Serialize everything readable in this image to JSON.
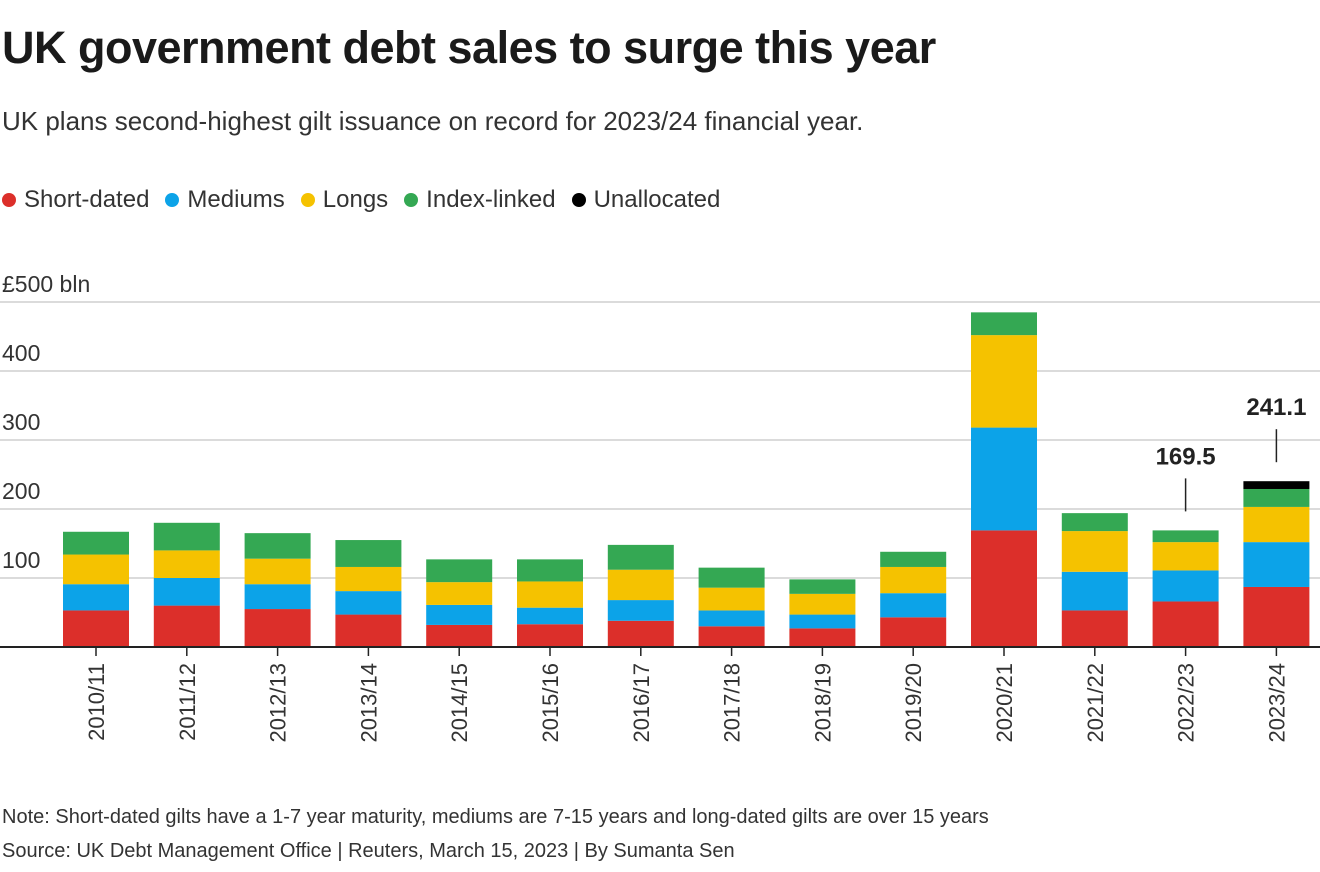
{
  "header": {
    "title": "UK government debt sales to surge this year",
    "subtitle": "UK plans second-highest gilt issuance on record for 2023/24 financial year."
  },
  "legend": [
    {
      "label": "Short-dated",
      "color": "#dc2f2a"
    },
    {
      "label": "Mediums",
      "color": "#0ca3e8"
    },
    {
      "label": "Longs",
      "color": "#f5c200"
    },
    {
      "label": "Index-linked",
      "color": "#34a853"
    },
    {
      "label": "Unallocated",
      "color": "#000000"
    }
  ],
  "footer": {
    "note": "Note: Short-dated gilts have a 1-7 year maturity, mediums are 7-15 years and long-dated gilts are over 15 years",
    "source": "Source: UK Debt Management Office | Reuters, March 15, 2023 | By Sumanta Sen"
  },
  "chart_data": {
    "type": "bar",
    "stacked": true,
    "categories": [
      "2010/11",
      "2011/12",
      "2012/13",
      "2013/14",
      "2014/15",
      "2015/16",
      "2016/17",
      "2017/18",
      "2018/19",
      "2019/20",
      "2020/21",
      "2021/22",
      "2022/23",
      "2023/24"
    ],
    "series": [
      {
        "name": "Short-dated",
        "color": "#dc2f2a",
        "values": [
          53,
          60,
          55,
          47,
          32,
          33,
          38,
          30,
          27,
          43,
          169,
          53,
          66,
          87
        ]
      },
      {
        "name": "Mediums",
        "color": "#0ca3e8",
        "values": [
          38,
          40,
          36,
          34,
          29,
          24,
          30,
          23,
          20,
          35,
          149,
          56,
          45,
          65
        ]
      },
      {
        "name": "Longs",
        "color": "#f5c200",
        "values": [
          43,
          40,
          37,
          35,
          33,
          38,
          44,
          33,
          30,
          38,
          134,
          59,
          41,
          51
        ]
      },
      {
        "name": "Index-linked",
        "color": "#34a853",
        "values": [
          33,
          40,
          37,
          39,
          33,
          32,
          36,
          29,
          21,
          22,
          33,
          26,
          17,
          26
        ]
      },
      {
        "name": "Unallocated",
        "color": "#000000",
        "values": [
          0,
          0,
          0,
          0,
          0,
          0,
          0,
          0,
          0,
          0,
          0,
          0,
          0,
          11.3
        ]
      }
    ],
    "yticks": [
      100,
      200,
      300,
      400
    ],
    "ytop_label": "£500 bln",
    "ylim": [
      0,
      500
    ],
    "annotations": [
      {
        "category": "2022/23",
        "text": "169.5"
      },
      {
        "category": "2023/24",
        "text": "241.1"
      }
    ],
    "grid": true,
    "legend_position": "top-left"
  }
}
